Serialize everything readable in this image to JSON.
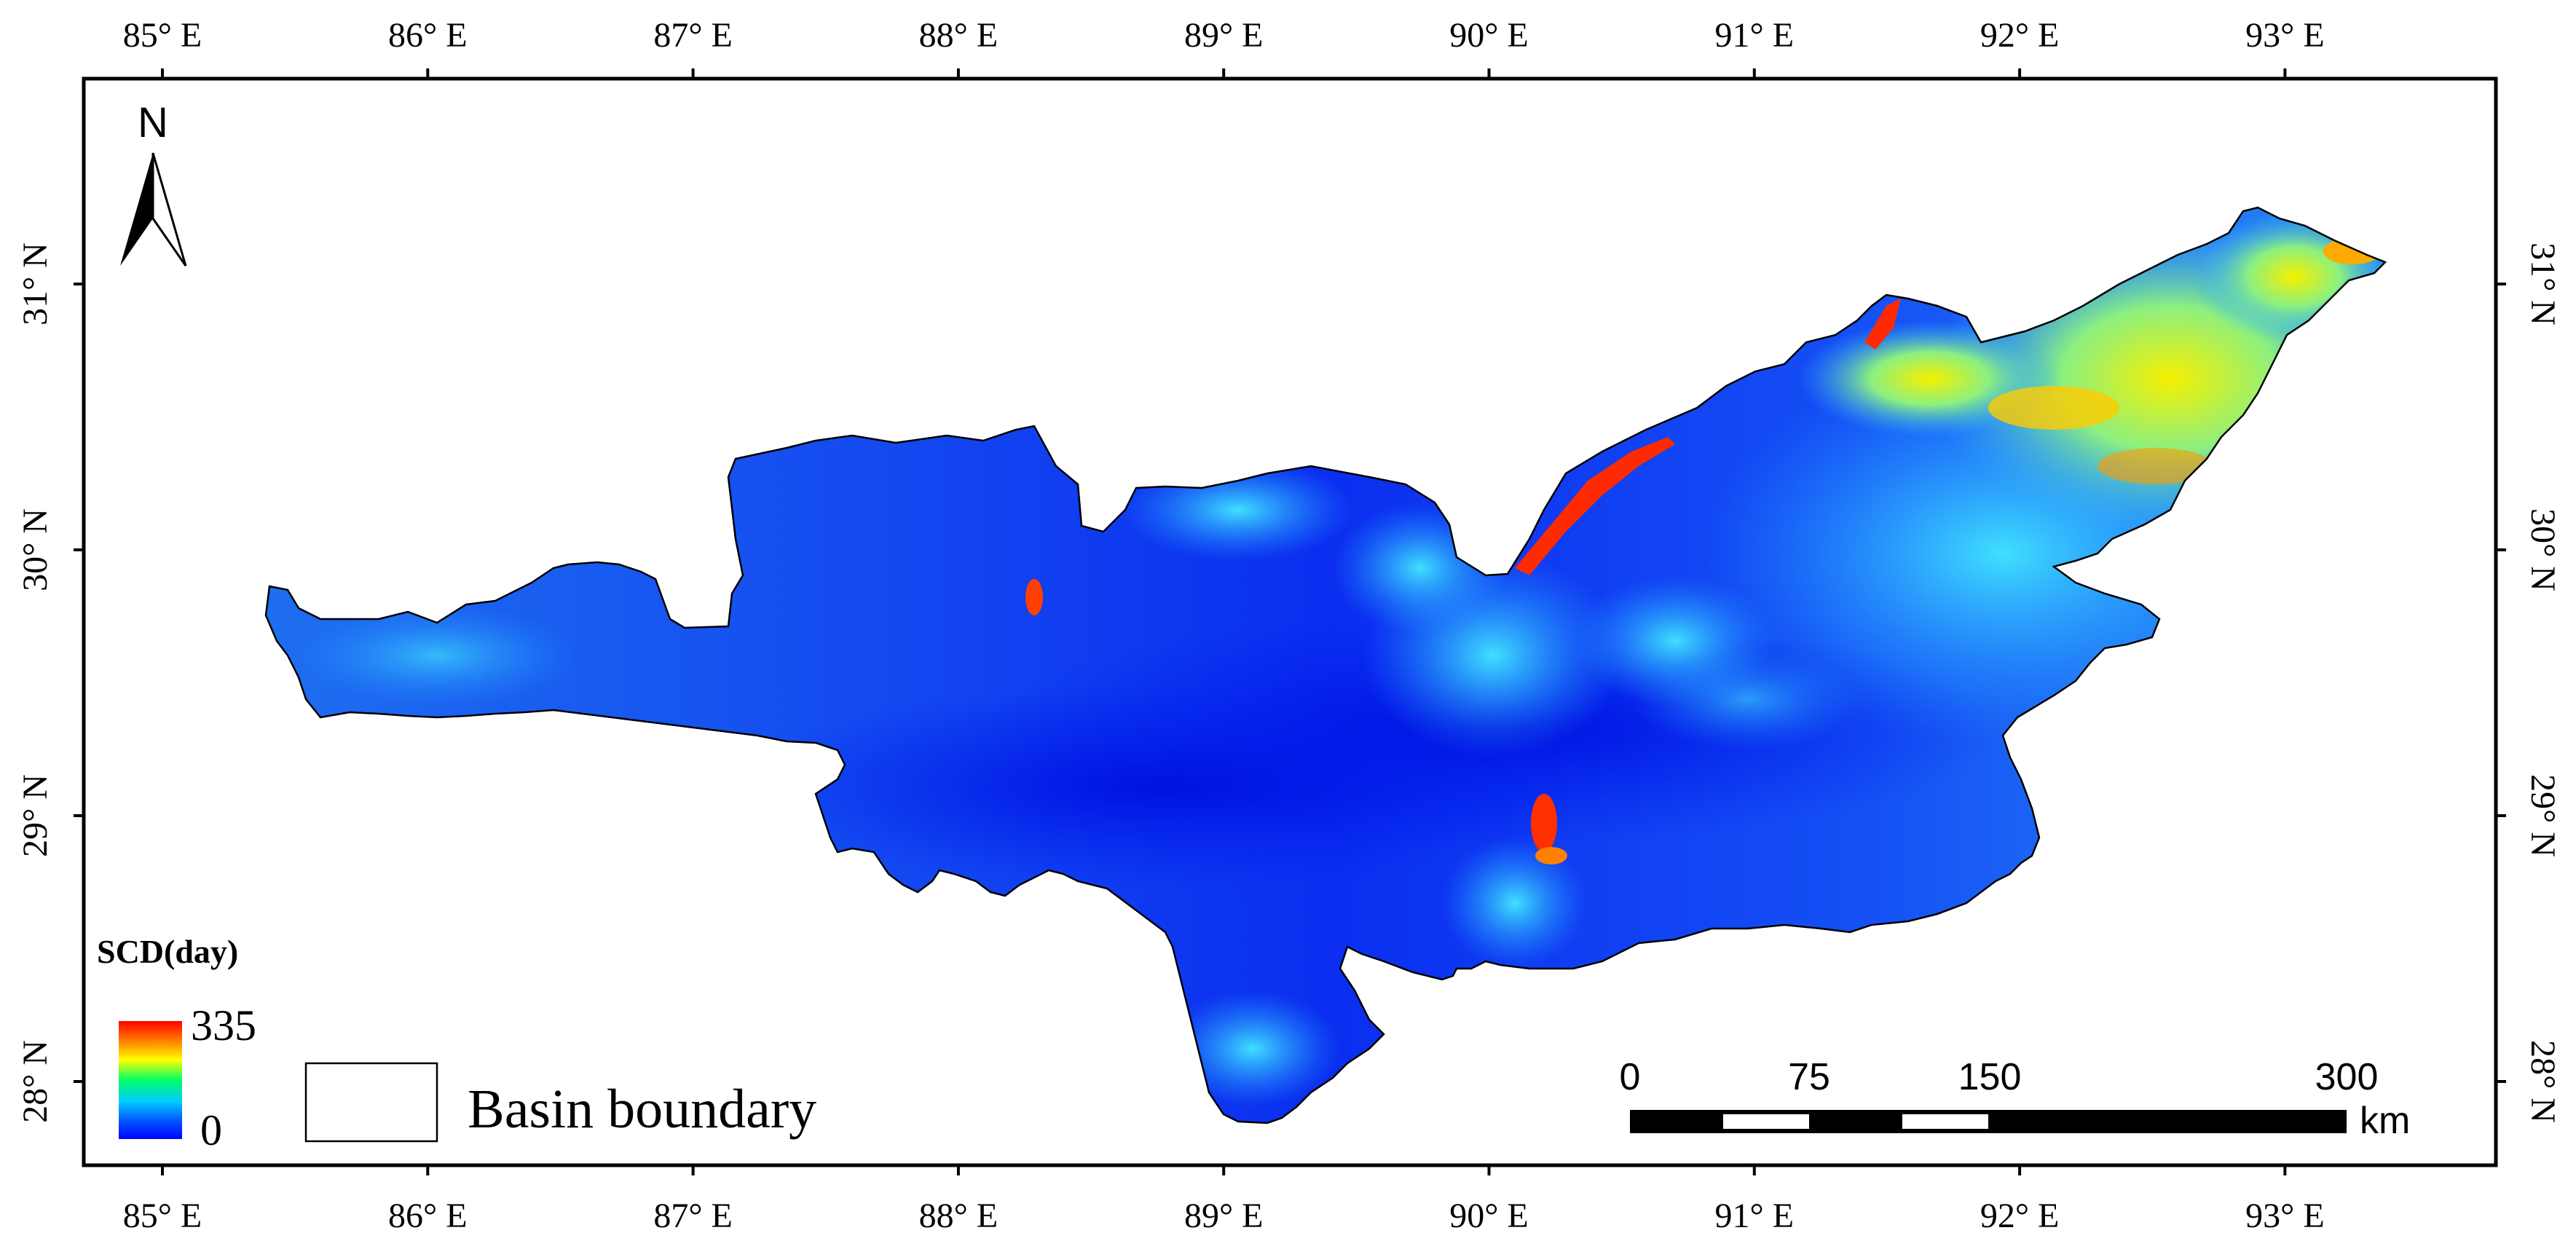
{
  "map": {
    "lon_ticks": [
      "85° E",
      "86° E",
      "87° E",
      "88° E",
      "89° E",
      "90° E",
      "91° E",
      "92° E",
      "93° E"
    ],
    "lat_ticks": [
      "31° N",
      "30° N",
      "29° N",
      "28° N"
    ],
    "lon_values": [
      85,
      86,
      87,
      88,
      89,
      90,
      91,
      92,
      93
    ],
    "lat_values": [
      31,
      30,
      29,
      28
    ]
  },
  "north_arrow": {
    "label": "N",
    "icon": "north-arrow-icon"
  },
  "legend": {
    "title": "SCD(day)",
    "max_label": "335",
    "min_label": "0",
    "gradient_colors": [
      "#ff0000",
      "#ff9900",
      "#ffff00",
      "#00ff66",
      "#00ccff",
      "#0044ff",
      "#0000ff"
    ],
    "boundary_label": "Basin boundary"
  },
  "scale_bar": {
    "labels": [
      "0",
      "75",
      "150",
      "300"
    ],
    "unit": "km"
  }
}
